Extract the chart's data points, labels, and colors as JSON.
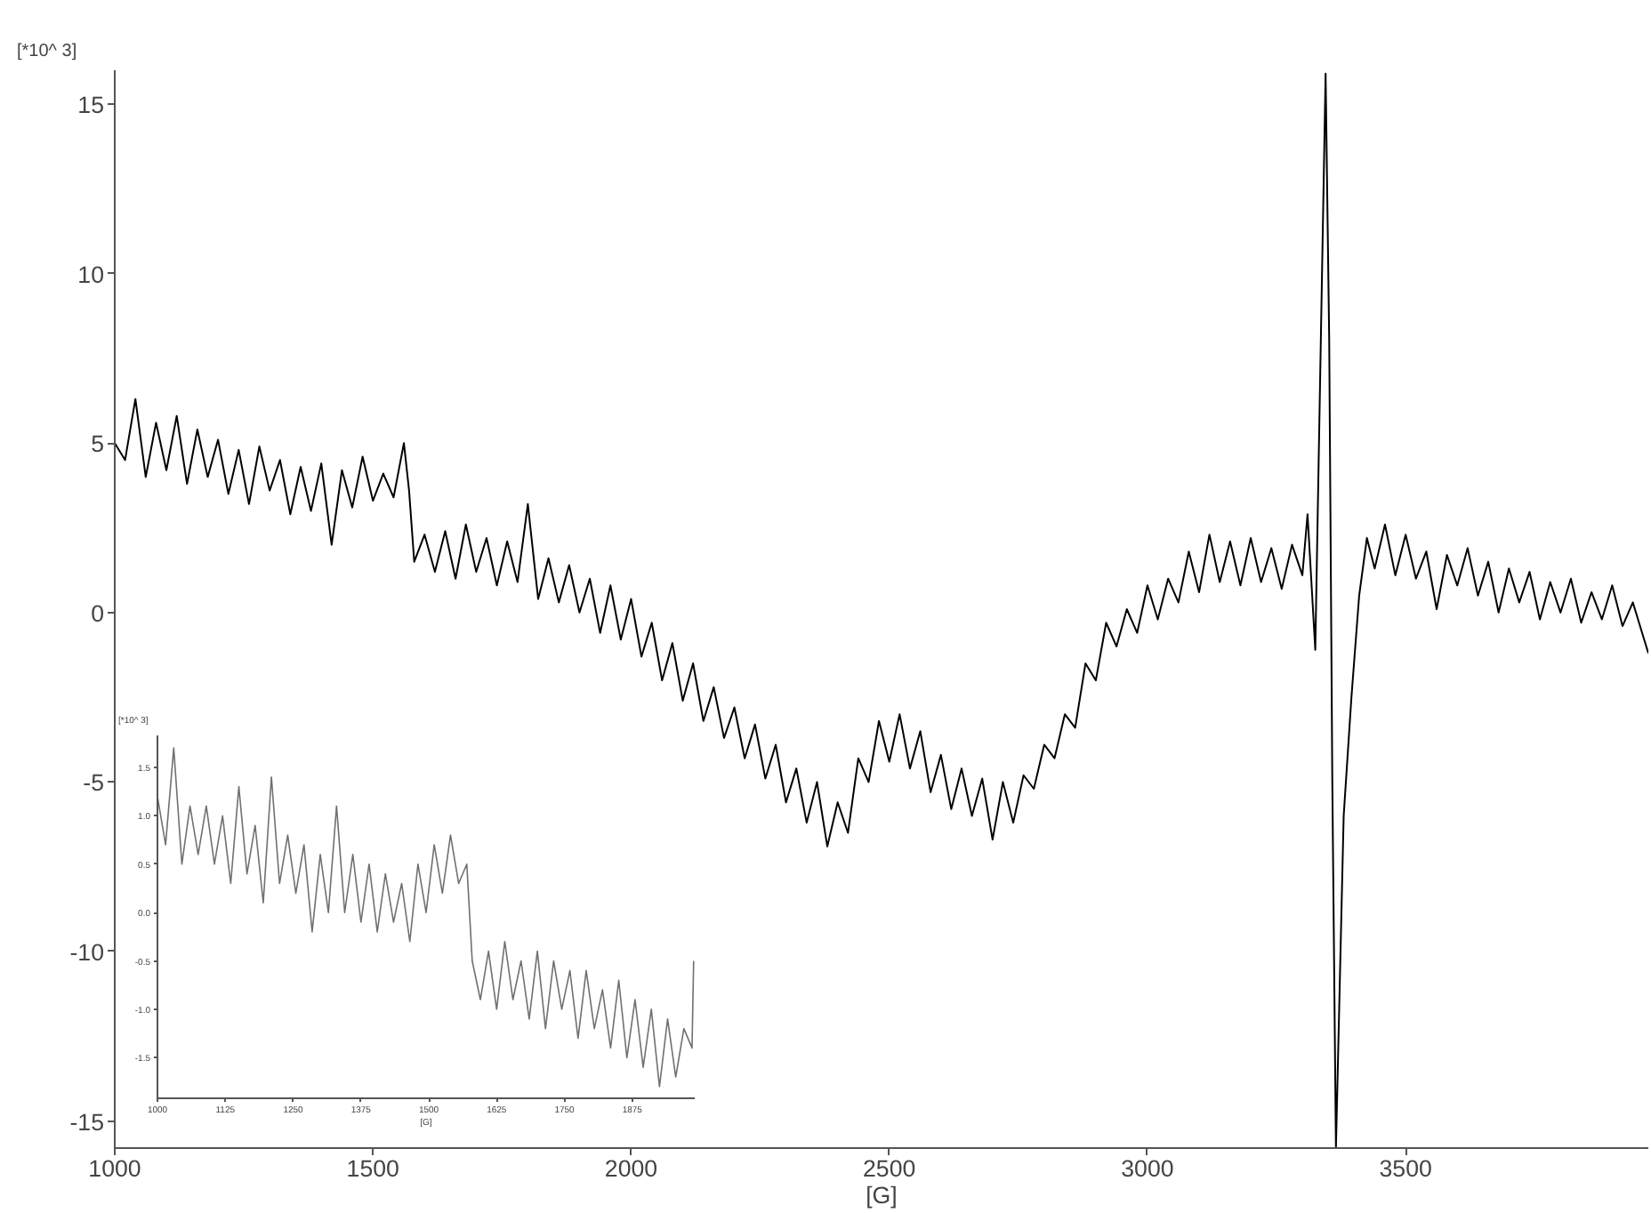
{
  "chart_data": [
    {
      "type": "line",
      "xlabel": "[G]",
      "ylabel": "[*10^ 3]",
      "color": "#000000",
      "xlim": [
        1000,
        3970
      ],
      "ylim": [
        -15.8,
        16
      ],
      "xticks": [
        1000,
        1500,
        2000,
        2500,
        3000,
        3500
      ],
      "yticks": [
        -15,
        -10,
        -5,
        0,
        5,
        10,
        15
      ],
      "x": [
        1000,
        1020,
        1040,
        1060,
        1080,
        1100,
        1120,
        1140,
        1160,
        1180,
        1200,
        1220,
        1240,
        1260,
        1280,
        1300,
        1320,
        1340,
        1360,
        1380,
        1400,
        1420,
        1440,
        1460,
        1480,
        1500,
        1520,
        1540,
        1560,
        1570,
        1580,
        1600,
        1620,
        1640,
        1660,
        1680,
        1700,
        1720,
        1740,
        1760,
        1780,
        1800,
        1820,
        1840,
        1860,
        1880,
        1900,
        1920,
        1940,
        1960,
        1980,
        2000,
        2020,
        2040,
        2060,
        2080,
        2100,
        2120,
        2140,
        2160,
        2180,
        2200,
        2220,
        2240,
        2260,
        2280,
        2300,
        2320,
        2340,
        2360,
        2380,
        2400,
        2420,
        2440,
        2460,
        2480,
        2500,
        2520,
        2540,
        2560,
        2580,
        2600,
        2620,
        2640,
        2660,
        2680,
        2700,
        2720,
        2740,
        2760,
        2780,
        2800,
        2820,
        2840,
        2860,
        2880,
        2900,
        2920,
        2940,
        2960,
        2980,
        3000,
        3020,
        3040,
        3060,
        3080,
        3100,
        3120,
        3140,
        3160,
        3180,
        3200,
        3220,
        3240,
        3260,
        3280,
        3300,
        3310,
        3325,
        3345,
        3352,
        3358,
        3365,
        3380,
        3395,
        3410,
        3425,
        3440,
        3460,
        3480,
        3500,
        3520,
        3540,
        3560,
        3580,
        3600,
        3620,
        3640,
        3660,
        3680,
        3700,
        3720,
        3740,
        3760,
        3780,
        3800,
        3820,
        3840,
        3860,
        3880,
        3900,
        3920,
        3940,
        3960,
        3970
      ],
      "values": [
        5.0,
        4.5,
        6.3,
        4.0,
        5.6,
        4.2,
        5.8,
        3.8,
        5.4,
        4.0,
        5.1,
        3.5,
        4.8,
        3.2,
        4.9,
        3.6,
        4.5,
        2.9,
        4.3,
        3.0,
        4.4,
        2.0,
        4.2,
        3.1,
        4.6,
        3.3,
        4.1,
        3.4,
        5.0,
        3.6,
        1.5,
        2.3,
        1.2,
        2.4,
        1.0,
        2.6,
        1.2,
        2.2,
        0.8,
        2.1,
        0.9,
        3.2,
        0.4,
        1.6,
        0.3,
        1.4,
        0.0,
        1.0,
        -0.6,
        0.8,
        -0.8,
        0.4,
        -1.3,
        -0.3,
        -2.0,
        -0.9,
        -2.6,
        -1.5,
        -3.2,
        -2.2,
        -3.7,
        -2.8,
        -4.3,
        -3.3,
        -4.9,
        -3.9,
        -5.6,
        -4.6,
        -6.2,
        -5.0,
        -6.9,
        -5.6,
        -6.5,
        -4.3,
        -5.0,
        -3.2,
        -4.4,
        -3.0,
        -4.6,
        -3.5,
        -5.3,
        -4.2,
        -5.8,
        -4.6,
        -6.0,
        -4.9,
        -6.7,
        -5.0,
        -6.2,
        -4.8,
        -5.2,
        -3.9,
        -4.3,
        -3.0,
        -3.4,
        -1.5,
        -2.0,
        -0.3,
        -1.0,
        0.1,
        -0.6,
        0.8,
        -0.2,
        1.0,
        0.3,
        1.8,
        0.6,
        2.3,
        0.9,
        2.1,
        0.8,
        2.2,
        0.9,
        1.9,
        0.7,
        2.0,
        1.1,
        2.9,
        -1.1,
        15.9,
        8,
        -5,
        -15.8,
        -6,
        -2.5,
        0.5,
        2.2,
        1.3,
        2.6,
        1.1,
        2.3,
        1.0,
        1.8,
        0.1,
        1.7,
        0.8,
        1.9,
        0.5,
        1.5,
        0.0,
        1.3,
        0.3,
        1.2,
        -0.2,
        0.9,
        0.0,
        1.0,
        -0.3,
        0.6,
        -0.2,
        0.8,
        -0.4,
        0.3,
        -0.7,
        -1.2
      ]
    },
    {
      "type": "line",
      "xlabel": "[G]",
      "ylabel": "[*10^ 3]",
      "color": "#707070",
      "xlim": [
        1000,
        1990
      ],
      "ylim": [
        -1.92,
        1.83
      ],
      "xticks": [
        1000,
        1125,
        1250,
        1375,
        1500,
        1625,
        1750,
        1875
      ],
      "yticks": [
        -1.5,
        {
          "value": -1,
          "label": "-1.0"
        },
        -0.5,
        {
          "value": 0,
          "label": "0.0"
        },
        0.5,
        {
          "value": 1,
          "label": "1.0"
        },
        1.5
      ],
      "x": [
        1000,
        1015,
        1030,
        1045,
        1060,
        1075,
        1090,
        1105,
        1120,
        1135,
        1150,
        1165,
        1180,
        1195,
        1210,
        1225,
        1240,
        1255,
        1270,
        1285,
        1300,
        1315,
        1330,
        1345,
        1360,
        1375,
        1390,
        1405,
        1420,
        1435,
        1450,
        1465,
        1480,
        1495,
        1510,
        1525,
        1540,
        1555,
        1570,
        1580,
        1595,
        1610,
        1625,
        1640,
        1655,
        1670,
        1685,
        1700,
        1715,
        1730,
        1745,
        1760,
        1775,
        1790,
        1805,
        1820,
        1835,
        1850,
        1865,
        1880,
        1895,
        1910,
        1925,
        1940,
        1955,
        1970,
        1985,
        1988
      ],
      "values": [
        1.2,
        0.7,
        1.7,
        0.5,
        1.1,
        0.6,
        1.1,
        0.5,
        1.0,
        0.3,
        1.3,
        0.4,
        0.9,
        0.1,
        1.4,
        0.3,
        0.8,
        0.2,
        0.7,
        -0.2,
        0.6,
        0.0,
        1.1,
        0.0,
        0.6,
        -0.1,
        0.5,
        -0.2,
        0.4,
        -0.1,
        0.3,
        -0.3,
        0.5,
        0.0,
        0.7,
        0.2,
        0.8,
        0.3,
        0.5,
        -0.5,
        -0.9,
        -0.4,
        -1.0,
        -0.3,
        -0.9,
        -0.5,
        -1.1,
        -0.4,
        -1.2,
        -0.5,
        -1.0,
        -0.6,
        -1.3,
        -0.6,
        -1.2,
        -0.8,
        -1.4,
        -0.7,
        -1.5,
        -0.9,
        -1.6,
        -1.0,
        -1.8,
        -1.1,
        -1.7,
        -1.2,
        -1.4,
        -0.5
      ]
    }
  ]
}
